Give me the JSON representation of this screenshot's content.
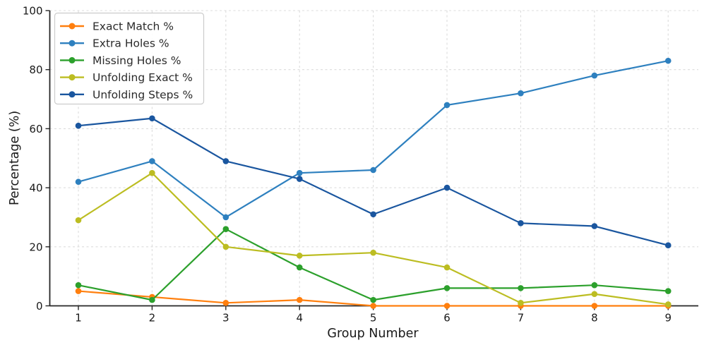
{
  "chart_data": {
    "type": "line",
    "title": "",
    "xlabel": "Group Number",
    "ylabel": "Percentage (%)",
    "x": [
      1,
      2,
      3,
      4,
      5,
      6,
      7,
      8,
      9
    ],
    "xlim": [
      0.6,
      9.4
    ],
    "ylim": [
      0,
      100
    ],
    "yticks": [
      0,
      20,
      40,
      60,
      80,
      100
    ],
    "grid": true,
    "grid_style": "dashed",
    "legend_position": "upper-left",
    "series": [
      {
        "name": "Exact Match %",
        "color": "#ff7f0e",
        "values": [
          5,
          3,
          1,
          2,
          0,
          0,
          0,
          0,
          0
        ]
      },
      {
        "name": "Extra Holes %",
        "color": "#2e80bf",
        "values": [
          42,
          49,
          30,
          45,
          46,
          68,
          72,
          78,
          83
        ]
      },
      {
        "name": "Missing Holes %",
        "color": "#2ca02c",
        "values": [
          7,
          2,
          26,
          13,
          2,
          6,
          6,
          7,
          5
        ]
      },
      {
        "name": "Unfolding Exact %",
        "color": "#bcbd22",
        "values": [
          29,
          45,
          20,
          17,
          18,
          13,
          1,
          4,
          0.5
        ]
      },
      {
        "name": "Unfolding Steps %",
        "color": "#1a569f",
        "values": [
          61,
          63.5,
          49,
          43,
          31,
          40,
          28,
          27,
          20.5
        ]
      }
    ],
    "colors": {
      "grid": "#dcdcdc",
      "axis": "#262626",
      "text": "#1a1a1a",
      "legend_border": "#cccccc",
      "legend_background": "#ffffff"
    }
  }
}
